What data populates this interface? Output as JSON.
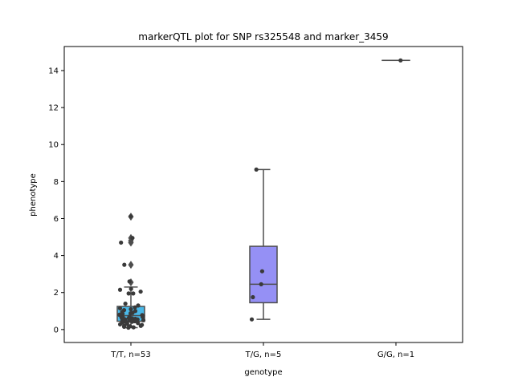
{
  "chart_data": {
    "type": "box",
    "title": "markerQTL plot for SNP rs325548 and marker_3459",
    "xlabel": "genotype",
    "ylabel": "phenotype",
    "ylim": [
      -0.7,
      15.3
    ],
    "yticks": [
      0,
      2,
      4,
      6,
      8,
      10,
      12,
      14
    ],
    "categories": [
      "T/T, n=53",
      "T/G, n=5",
      "G/G, n=1"
    ],
    "colors": {
      "tt_box": "#4ab8e8",
      "tg_box": "#9590f5",
      "gg_box": "#9dc93f",
      "lines": "#4d4d4d",
      "points": "#3a3a3a"
    },
    "boxes": [
      {
        "category": "T/T, n=53",
        "q1": 0.45,
        "median": 0.75,
        "q3": 1.25,
        "whisker_low": 0.1,
        "whisker_high": 2.3,
        "outliers": [
          2.55,
          3.5,
          4.7,
          4.8,
          4.95,
          6.1
        ]
      },
      {
        "category": "T/G, n=5",
        "q1": 1.45,
        "median": 2.45,
        "q3": 4.5,
        "whisker_low": 0.55,
        "whisker_high": 8.65,
        "outliers": []
      },
      {
        "category": "G/G, n=1",
        "q1": 14.55,
        "median": 14.55,
        "q3": 14.55,
        "whisker_low": 14.55,
        "whisker_high": 14.55,
        "outliers": []
      }
    ],
    "points": [
      {
        "category": "T/T, n=53",
        "values": [
          6.12,
          4.95,
          4.7,
          3.5,
          2.6,
          2.2,
          2.15,
          2.05,
          1.95,
          1.95,
          1.4,
          1.3,
          1.2,
          1.15,
          1.1,
          1.05,
          1.0,
          0.95,
          0.9,
          0.88,
          0.85,
          0.8,
          0.78,
          0.75,
          0.72,
          0.7,
          0.68,
          0.65,
          0.62,
          0.6,
          0.58,
          0.55,
          0.52,
          0.5,
          0.48,
          0.45,
          0.42,
          0.4,
          0.38,
          0.35,
          0.32,
          0.3,
          0.28,
          0.25,
          0.22,
          0.2,
          0.18,
          0.15,
          0.12,
          0.1,
          0.55,
          0.45,
          0.65
        ]
      },
      {
        "category": "T/G, n=5",
        "values": [
          8.65,
          3.15,
          1.75,
          0.55,
          2.45
        ]
      },
      {
        "category": "G/G, n=1",
        "values": [
          14.55
        ]
      }
    ]
  }
}
